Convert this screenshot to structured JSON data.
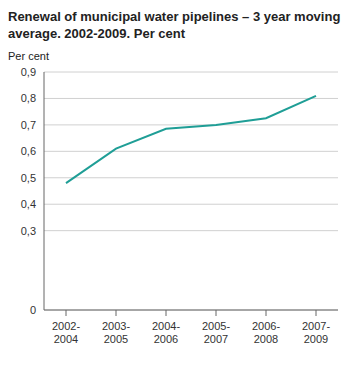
{
  "chart_data": {
    "type": "line",
    "title": "Renewal of municipal water pipelines – 3 year moving average. 2002-2009. Per cent",
    "y_label": "Per cent",
    "categories": [
      "2002-2004",
      "2003-2005",
      "2004-2006",
      "2005-2007",
      "2006-2008",
      "2007-2009"
    ],
    "values": [
      0.48,
      0.61,
      0.685,
      0.7,
      0.725,
      0.81
    ],
    "color": "#1f9e96",
    "ylim": [
      0,
      0.9
    ],
    "yticks": [
      0,
      {
        "value": 0.3,
        "label": "0,3"
      },
      {
        "value": 0.4,
        "label": "0,4"
      },
      {
        "value": 0.5,
        "label": "0,5"
      },
      {
        "value": 0.6,
        "label": "0,6"
      },
      {
        "value": 0.7,
        "label": "0,7"
      },
      {
        "value": 0.8,
        "label": "0,8"
      },
      {
        "value": 0.9,
        "label": "0,9"
      }
    ],
    "grid": true
  }
}
